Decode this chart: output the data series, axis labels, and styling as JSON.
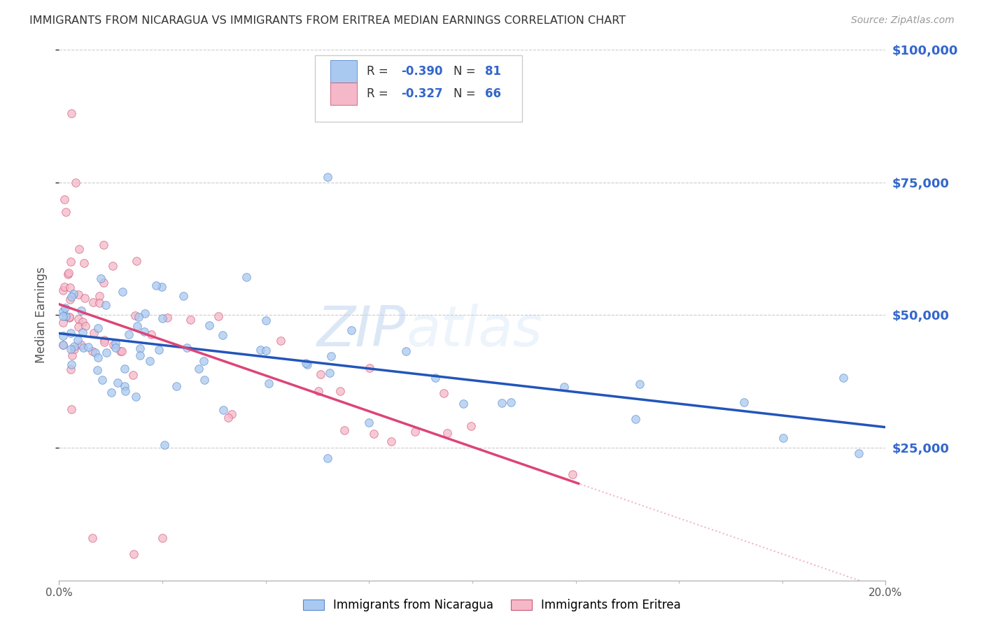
{
  "title": "IMMIGRANTS FROM NICARAGUA VS IMMIGRANTS FROM ERITREA MEDIAN EARNINGS CORRELATION CHART",
  "source": "Source: ZipAtlas.com",
  "ylabel": "Median Earnings",
  "x_min": 0.0,
  "x_max": 0.2,
  "y_min": 0,
  "y_max": 100000,
  "y_ticks": [
    25000,
    50000,
    75000,
    100000
  ],
  "y_tick_labels": [
    "$25,000",
    "$50,000",
    "$75,000",
    "$100,000"
  ],
  "x_ticks": [
    0.0,
    0.025,
    0.05,
    0.075,
    0.1,
    0.125,
    0.15,
    0.175,
    0.2
  ],
  "x_label_ticks": [
    0.0,
    0.2
  ],
  "x_tick_labels": [
    "0.0%",
    "20.0%"
  ],
  "legend_labels": [
    "Immigrants from Nicaragua",
    "Immigrants from Eritrea"
  ],
  "legend_R": [
    -0.39,
    -0.327
  ],
  "legend_N": [
    81,
    66
  ],
  "blue_color": "#aac9f0",
  "pink_color": "#f5b8c8",
  "blue_line_color": "#2255bb",
  "pink_line_color": "#dd4477",
  "blue_edge_color": "#5588cc",
  "pink_edge_color": "#cc5577",
  "watermark_zip": "ZIP",
  "watermark_atlas": "atlas",
  "background_color": "#ffffff",
  "nic_intercept": 46000,
  "nic_slope": -100000,
  "eri_intercept": 52000,
  "eri_slope": -230000,
  "grid_color": "#cccccc",
  "grid_style": "--"
}
